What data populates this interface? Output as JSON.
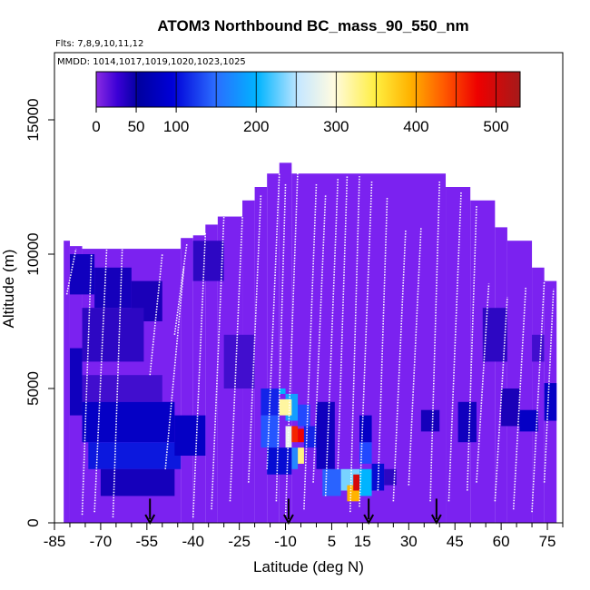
{
  "chart_data": {
    "type": "heatmap",
    "title": "ATOM3 Northbound BC_mass_90_550_nm",
    "flights_label": "Flts: 7,8,9,10,11,12",
    "dates_label": "MMDD: 1014,1017,1019,1020,1023,1025",
    "xlabel": "Latitude (deg N)",
    "ylabel": "Altitude (m)",
    "xlim": [
      -85,
      80
    ],
    "ylim": [
      0,
      17500
    ],
    "x_ticks": [
      "-85",
      "-70",
      "-55",
      "-40",
      "-25",
      "-10",
      "5",
      "15",
      "30",
      "45",
      "60",
      "75"
    ],
    "x_tick_values": [
      -85,
      -70,
      -55,
      -40,
      -25,
      -10,
      5,
      15,
      30,
      45,
      60,
      75
    ],
    "y_ticks": [
      "0",
      "5000",
      "10000",
      "15000"
    ],
    "y_tick_values": [
      0,
      5000,
      10000,
      15000
    ],
    "colorbar": {
      "ticks": [
        "0",
        "50",
        "100",
        "200",
        "300",
        "400",
        "500"
      ],
      "tick_values": [
        0,
        50,
        100,
        200,
        300,
        400,
        500
      ],
      "max": 530
    },
    "grid": false,
    "background_value": 25,
    "column_tops": [
      {
        "lat": [
          -82,
          -80
        ],
        "top": 10500
      },
      {
        "lat": [
          -80,
          -76
        ],
        "top": 10300
      },
      {
        "lat": [
          -76,
          -44
        ],
        "top": 10200
      },
      {
        "lat": [
          -44,
          -40
        ],
        "top": 10600
      },
      {
        "lat": [
          -40,
          -36
        ],
        "top": 10700
      },
      {
        "lat": [
          -36,
          -32
        ],
        "top": 11100
      },
      {
        "lat": [
          -32,
          -24
        ],
        "top": 11400
      },
      {
        "lat": [
          -24,
          -20
        ],
        "top": 12000
      },
      {
        "lat": [
          -20,
          -16
        ],
        "top": 12500
      },
      {
        "lat": [
          -16,
          -12
        ],
        "top": 13000
      },
      {
        "lat": [
          -12,
          -8
        ],
        "top": 13400
      },
      {
        "lat": [
          -8,
          42
        ],
        "top": 13000
      },
      {
        "lat": [
          42,
          50
        ],
        "top": 12500
      },
      {
        "lat": [
          50,
          58
        ],
        "top": 12000
      },
      {
        "lat": [
          58,
          62
        ],
        "top": 11000
      },
      {
        "lat": [
          62,
          70
        ],
        "top": 10500
      },
      {
        "lat": [
          70,
          74
        ],
        "top": 9500
      },
      {
        "lat": [
          74,
          78
        ],
        "top": 9000
      }
    ],
    "cells": [
      {
        "lat": [
          -80,
          -72
        ],
        "alt": [
          8500,
          10000
        ],
        "value": 60
      },
      {
        "lat": [
          -72,
          -60
        ],
        "alt": [
          8000,
          9500
        ],
        "value": 55
      },
      {
        "lat": [
          -60,
          -50
        ],
        "alt": [
          7500,
          9000
        ],
        "value": 50
      },
      {
        "lat": [
          -76,
          -56
        ],
        "alt": [
          6000,
          8000
        ],
        "value": 45
      },
      {
        "lat": [
          -80,
          -76
        ],
        "alt": [
          4000,
          6500
        ],
        "value": 60
      },
      {
        "lat": [
          -76,
          -50
        ],
        "alt": [
          4500,
          5500
        ],
        "value": 40
      },
      {
        "lat": [
          -76,
          -46
        ],
        "alt": [
          3000,
          4500
        ],
        "value": 70
      },
      {
        "lat": [
          -74,
          -44
        ],
        "alt": [
          2000,
          3000
        ],
        "value": 85
      },
      {
        "lat": [
          -70,
          -46
        ],
        "alt": [
          1000,
          2000
        ],
        "value": 55
      },
      {
        "lat": [
          -46,
          -36
        ],
        "alt": [
          2500,
          4000
        ],
        "value": 70
      },
      {
        "lat": [
          -40,
          -30
        ],
        "alt": [
          9000,
          10500
        ],
        "value": 45
      },
      {
        "lat": [
          -30,
          -20
        ],
        "alt": [
          5000,
          7000
        ],
        "value": 40
      },
      {
        "lat": [
          -18,
          -12
        ],
        "alt": [
          4000,
          5000
        ],
        "value": 90
      },
      {
        "lat": [
          -18,
          -12
        ],
        "alt": [
          2800,
          4000
        ],
        "value": 120
      },
      {
        "lat": [
          -12,
          -10
        ],
        "alt": [
          4800,
          5000
        ],
        "value": 200
      },
      {
        "lat": [
          -10,
          -6
        ],
        "alt": [
          3800,
          4800
        ],
        "value": 180
      },
      {
        "lat": [
          -12,
          -8
        ],
        "alt": [
          4000,
          4600
        ],
        "value": 320
      },
      {
        "lat": [
          -10,
          -8
        ],
        "alt": [
          2800,
          3600
        ],
        "value": 280
      },
      {
        "lat": [
          -8,
          -6
        ],
        "alt": [
          3000,
          3600
        ],
        "value": 480
      },
      {
        "lat": [
          -8,
          -6
        ],
        "alt": [
          2000,
          2800
        ],
        "value": 160
      },
      {
        "lat": [
          -6,
          -4
        ],
        "alt": [
          3000,
          3500
        ],
        "value": 500
      },
      {
        "lat": [
          -6,
          -4
        ],
        "alt": [
          2200,
          2800
        ],
        "value": 330
      },
      {
        "lat": [
          -6,
          -2
        ],
        "alt": [
          3600,
          4400
        ],
        "value": 110
      },
      {
        "lat": [
          -4,
          0
        ],
        "alt": [
          2800,
          3600
        ],
        "value": 90
      },
      {
        "lat": [
          -16,
          -8
        ],
        "alt": [
          1800,
          2800
        ],
        "value": 80
      },
      {
        "lat": [
          0,
          6
        ],
        "alt": [
          2000,
          4500
        ],
        "value": 60
      },
      {
        "lat": [
          2,
          8
        ],
        "alt": [
          1000,
          2000
        ],
        "value": 130
      },
      {
        "lat": [
          8,
          14
        ],
        "alt": [
          1200,
          2000
        ],
        "value": 230
      },
      {
        "lat": [
          10,
          14
        ],
        "alt": [
          800,
          1400
        ],
        "value": 400
      },
      {
        "lat": [
          12,
          14
        ],
        "alt": [
          1200,
          1800
        ],
        "value": 510
      },
      {
        "lat": [
          14,
          18
        ],
        "alt": [
          1000,
          2000
        ],
        "value": 200
      },
      {
        "lat": [
          14,
          18
        ],
        "alt": [
          2200,
          3000
        ],
        "value": 110
      },
      {
        "lat": [
          14,
          18
        ],
        "alt": [
          3000,
          4000
        ],
        "value": 70
      },
      {
        "lat": [
          18,
          22
        ],
        "alt": [
          1200,
          2200
        ],
        "value": 80
      },
      {
        "lat": [
          22,
          26
        ],
        "alt": [
          1400,
          2000
        ],
        "value": 45
      },
      {
        "lat": [
          34,
          40
        ],
        "alt": [
          3400,
          4200
        ],
        "value": 55
      },
      {
        "lat": [
          46,
          52
        ],
        "alt": [
          3000,
          4500
        ],
        "value": 60
      },
      {
        "lat": [
          54,
          62
        ],
        "alt": [
          6000,
          8000
        ],
        "value": 45
      },
      {
        "lat": [
          60,
          66
        ],
        "alt": [
          3600,
          5000
        ],
        "value": 50
      },
      {
        "lat": [
          66,
          72
        ],
        "alt": [
          3400,
          4200
        ],
        "value": 70
      },
      {
        "lat": [
          70,
          74
        ],
        "alt": [
          6000,
          7000
        ],
        "value": 40
      },
      {
        "lat": [
          74,
          78
        ],
        "alt": [
          3800,
          5200
        ],
        "value": 70
      }
    ],
    "profiles": [
      {
        "lat": [
          -81,
          -78
        ],
        "alt": [
          8500,
          10200
        ]
      },
      {
        "lat": [
          -76,
          -73
        ],
        "alt": [
          300,
          10000
        ]
      },
      {
        "lat": [
          -72,
          -68
        ],
        "alt": [
          400,
          10300
        ]
      },
      {
        "lat": [
          -66,
          -63
        ],
        "alt": [
          200,
          10200
        ]
      },
      {
        "lat": [
          -54,
          -50
        ],
        "alt": [
          5500,
          10000
        ]
      },
      {
        "lat": [
          -46,
          -42
        ],
        "alt": [
          7000,
          10400
        ]
      },
      {
        "lat": [
          -49,
          -43
        ],
        "alt": [
          2000,
          9500
        ]
      },
      {
        "lat": [
          -40,
          -36
        ],
        "alt": [
          200,
          10800
        ]
      },
      {
        "lat": [
          -34,
          -30
        ],
        "alt": [
          500,
          11400
        ]
      },
      {
        "lat": [
          -28,
          -24
        ],
        "alt": [
          800,
          11400
        ]
      },
      {
        "lat": [
          -22,
          -18
        ],
        "alt": [
          1500,
          12200
        ]
      },
      {
        "lat": [
          -16,
          -12
        ],
        "alt": [
          2000,
          13000
        ]
      },
      {
        "lat": [
          -13,
          -10
        ],
        "alt": [
          800,
          12600
        ]
      },
      {
        "lat": [
          -10,
          -6
        ],
        "alt": [
          200,
          13200
        ]
      },
      {
        "lat": [
          -4,
          0
        ],
        "alt": [
          500,
          12600
        ]
      },
      {
        "lat": [
          -1,
          3
        ],
        "alt": [
          1500,
          12200
        ]
      },
      {
        "lat": [
          3,
          7
        ],
        "alt": [
          1000,
          12800
        ]
      },
      {
        "lat": [
          7,
          10
        ],
        "alt": [
          2000,
          12900
        ]
      },
      {
        "lat": [
          11,
          14
        ],
        "alt": [
          400,
          12900
        ]
      },
      {
        "lat": [
          14,
          18
        ],
        "alt": [
          600,
          12700
        ]
      },
      {
        "lat": [
          20,
          23
        ],
        "alt": [
          1200,
          12100
        ]
      },
      {
        "lat": [
          25,
          29
        ],
        "alt": [
          800,
          10900
        ]
      },
      {
        "lat": [
          30,
          34
        ],
        "alt": [
          1400,
          11000
        ]
      },
      {
        "lat": [
          37,
          40
        ],
        "alt": [
          800,
          12700
        ]
      },
      {
        "lat": [
          43,
          47
        ],
        "alt": [
          800,
          12300
        ]
      },
      {
        "lat": [
          49,
          52
        ],
        "alt": [
          1200,
          11800
        ]
      },
      {
        "lat": [
          52,
          56
        ],
        "alt": [
          1500,
          8900
        ]
      },
      {
        "lat": [
          58,
          62
        ],
        "alt": [
          800,
          8400
        ]
      },
      {
        "lat": [
          64,
          68
        ],
        "alt": [
          500,
          8800
        ]
      },
      {
        "lat": [
          70,
          74
        ],
        "alt": [
          400,
          9000
        ]
      },
      {
        "lat": [
          74,
          77
        ],
        "alt": [
          1500,
          8700
        ]
      }
    ],
    "arrows_lat": [
      -54,
      -9,
      17,
      39
    ]
  }
}
